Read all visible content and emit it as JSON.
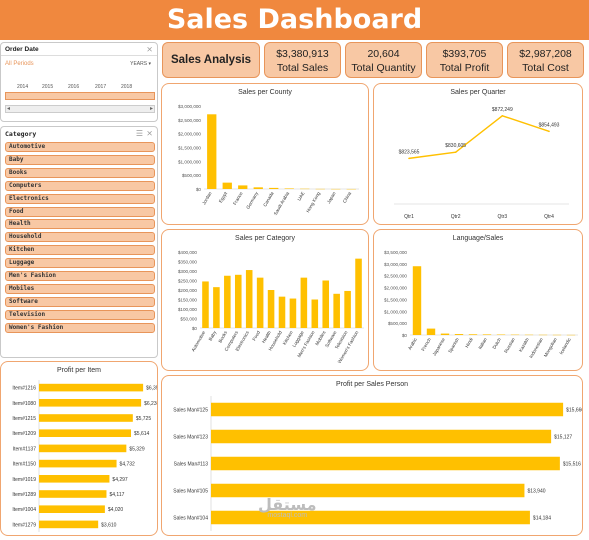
{
  "header": {
    "title": "Sales Dashboard"
  },
  "kpis": {
    "analysis_label": "Sales Analysis",
    "total_sales_value": "$3,380,913",
    "total_sales_label": "Total Sales",
    "total_quantity_value": "20,604",
    "total_quantity_label": "Total Quantity",
    "total_profit_value": "$393,705",
    "total_profit_label": "Total Profit",
    "total_cost_value": "$2,987,208",
    "total_cost_label": "Total Cost"
  },
  "order_date_slicer": {
    "title": "Order Date",
    "period_label": "All Periods",
    "granularity": "YEARS",
    "years": [
      "2016",
      "2017",
      "2018"
    ],
    "years_prefix": [
      "2014",
      "2015"
    ]
  },
  "category_slicer": {
    "title": "Category",
    "items": [
      "Automotive",
      "Baby",
      "Books",
      "Computers",
      "Electronics",
      "Food",
      "Health",
      "Household",
      "Kitchen",
      "Luggage",
      "Men's Fashion",
      "Mobiles",
      "Software",
      "Television",
      "Women's Fashion"
    ]
  },
  "colors": {
    "accent": "#f0883e",
    "bar": "#ffc000",
    "panel_border": "#f0a670"
  },
  "chart_data": [
    {
      "type": "bar",
      "title": "Sales per County",
      "categories": [
        "Jordan",
        "Egypt",
        "France",
        "Germany",
        "Canada",
        "Saudi Arabia",
        "UAE",
        "Hong Kong",
        "Japan",
        "China"
      ],
      "values": [
        2700000,
        230000,
        130000,
        60000,
        40000,
        20000,
        10000,
        5000,
        3000,
        2000
      ],
      "yticks": [
        "$3,000,000",
        "$2,500,000",
        "$2,000,000",
        "$1,500,000",
        "$1,000,000",
        "$500,000",
        "$0"
      ],
      "ylim": [
        0,
        3000000
      ]
    },
    {
      "type": "line",
      "title": "Sales per Quarter",
      "categories": [
        "Qtr1",
        "Qtr2",
        "Qtr3",
        "Qtr4"
      ],
      "values": [
        823565,
        830605,
        872249,
        854493
      ],
      "data_labels": [
        "$823,565",
        "$830,605",
        "$872,249",
        "$854,493"
      ]
    },
    {
      "type": "bar",
      "title": "Sales per Category",
      "categories": [
        "Automotive",
        "Baby",
        "Books",
        "Computers",
        "Electronics",
        "Food",
        "Health",
        "Household",
        "Kitchen",
        "Luggage",
        "Men's Fashion",
        "Mobiles",
        "Software",
        "Television",
        "Women's Fashion"
      ],
      "values": [
        245000,
        215000,
        275000,
        280000,
        305000,
        265000,
        200000,
        165000,
        155000,
        265000,
        150000,
        250000,
        180000,
        195000,
        365000
      ],
      "yticks": [
        "$400,000",
        "$350,000",
        "$300,000",
        "$250,000",
        "$200,000",
        "$150,000",
        "$100,000",
        "$50,000",
        "$0"
      ],
      "ylim": [
        0,
        400000
      ]
    },
    {
      "type": "bar",
      "title": "Language/Sales",
      "categories": [
        "Arabic",
        "French",
        "Japanese",
        "Spanish",
        "Hindi",
        "Italian",
        "Dutch",
        "Russian",
        "Kazakh",
        "Indonesian",
        "Mongolian",
        "Icelandic"
      ],
      "values": [
        2900000,
        270000,
        60000,
        40000,
        30000,
        25000,
        20000,
        15000,
        12000,
        10000,
        8000,
        6000
      ],
      "yticks": [
        "$3,500,000",
        "$3,000,000",
        "$2,500,000",
        "$2,000,000",
        "$1,500,000",
        "$1,000,000",
        "$500,000",
        "$0"
      ],
      "ylim": [
        0,
        3500000
      ]
    },
    {
      "type": "bar",
      "orientation": "horizontal",
      "title": "Profit per Item",
      "categories": [
        "Item#1216",
        "Item#1080",
        "Item#1215",
        "Item#1209",
        "Item#1137",
        "Item#1150",
        "Item#1019",
        "Item#1289",
        "Item#1004",
        "Item#1279"
      ],
      "values": [
        6353,
        6230,
        5725,
        5614,
        5329,
        4732,
        4297,
        4117,
        4020,
        3610
      ],
      "data_labels": [
        "$6,353",
        "$6,230",
        "$5,725",
        "$5,614",
        "$5,329",
        "$4,732",
        "$4,297",
        "$4,117",
        "$4,020",
        "$3,610"
      ]
    },
    {
      "type": "bar",
      "orientation": "horizontal",
      "title": "Profit per Sales Person",
      "categories": [
        "Sales Man#125",
        "Sales Man#123",
        "Sales Man#113",
        "Sales Man#105",
        "Sales Man#104"
      ],
      "values": [
        15660,
        15127,
        15516,
        13940,
        14184
      ],
      "data_labels": [
        "$15,660",
        "$15,127",
        "$15,516",
        "$13,940",
        "$14,184"
      ]
    }
  ],
  "watermark": {
    "text": "مستقل",
    "sub": "mostaql.com"
  }
}
